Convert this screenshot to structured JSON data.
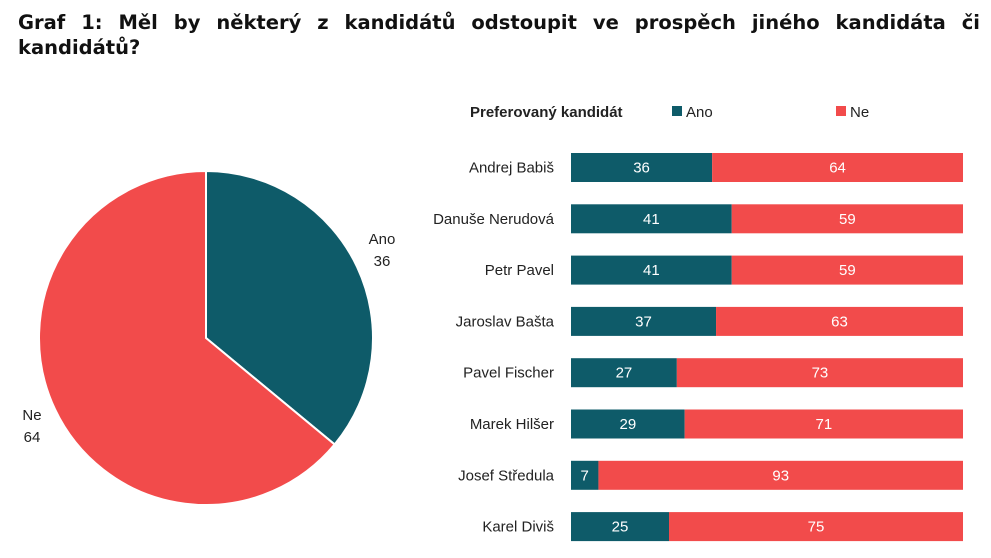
{
  "title": "Graf 1: Měl by některý z kandidátů odstoupit ve prospěch jiného kandidáta či kandidátů?",
  "colors": {
    "ano": "#0e5b69",
    "ne": "#f24b4b"
  },
  "chart_data": [
    {
      "type": "pie",
      "slices": [
        {
          "name": "Ano",
          "value": 36
        },
        {
          "name": "Ne",
          "value": 64
        }
      ]
    },
    {
      "type": "bar",
      "orientation": "horizontal",
      "stacked": true,
      "legend_title": "Preferovaný kandidát",
      "legend_position": "top",
      "categories": [
        "Andrej Babiš",
        "Danuše Nerudová",
        "Petr Pavel",
        "Jaroslav Bašta",
        "Pavel Fischer",
        "Marek Hilšer",
        "Josef Středula",
        "Karel Diviš"
      ],
      "series": [
        {
          "name": "Ano",
          "values": [
            36,
            41,
            41,
            37,
            27,
            29,
            7,
            25
          ]
        },
        {
          "name": "Ne",
          "values": [
            64,
            59,
            59,
            63,
            73,
            71,
            93,
            75
          ]
        }
      ],
      "xlim": [
        0,
        100
      ]
    }
  ]
}
